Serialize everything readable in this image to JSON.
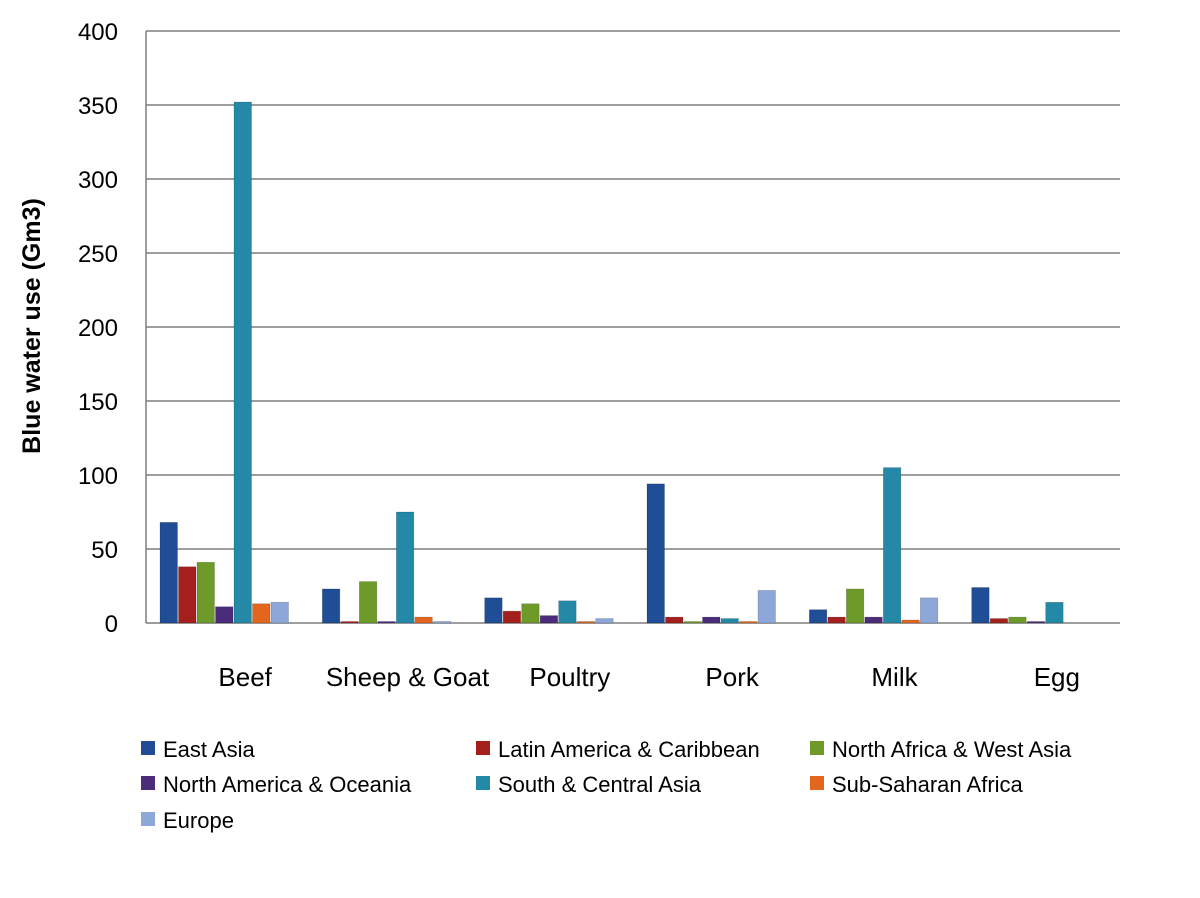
{
  "chart_data": {
    "type": "bar",
    "title": "",
    "xlabel": "",
    "ylabel": "Blue water use (Gm3)",
    "ylim": [
      0,
      400
    ],
    "yticks": [
      0,
      50,
      100,
      150,
      200,
      250,
      300,
      350,
      400
    ],
    "grid": true,
    "legend_position": "bottom",
    "categories": [
      "Beef",
      "Sheep & Goat",
      "Poultry",
      "Pork",
      "Milk",
      "Egg"
    ],
    "series": [
      {
        "name": "East Asia",
        "color": "#1F4E96",
        "values": [
          68,
          23,
          17,
          94,
          9,
          24
        ]
      },
      {
        "name": "Latin America & Caribbean",
        "color": "#A3201C",
        "values": [
          38,
          1,
          8,
          4,
          4,
          3
        ]
      },
      {
        "name": "North Africa & West Asia",
        "color": "#6E9A2A",
        "values": [
          41,
          28,
          13,
          1,
          23,
          4
        ]
      },
      {
        "name": "North America & Oceania",
        "color": "#4A2C7A",
        "values": [
          11,
          1,
          5,
          4,
          4,
          1
        ]
      },
      {
        "name": "South & Central Asia",
        "color": "#2389A6",
        "values": [
          352,
          75,
          15,
          3,
          105,
          14
        ]
      },
      {
        "name": "Sub-Saharan Africa",
        "color": "#E2661D",
        "values": [
          13,
          4,
          1,
          1,
          2,
          0
        ]
      },
      {
        "name": "Europe",
        "color": "#8DA7D8",
        "values": [
          14,
          1,
          3,
          22,
          17,
          0
        ]
      }
    ]
  }
}
